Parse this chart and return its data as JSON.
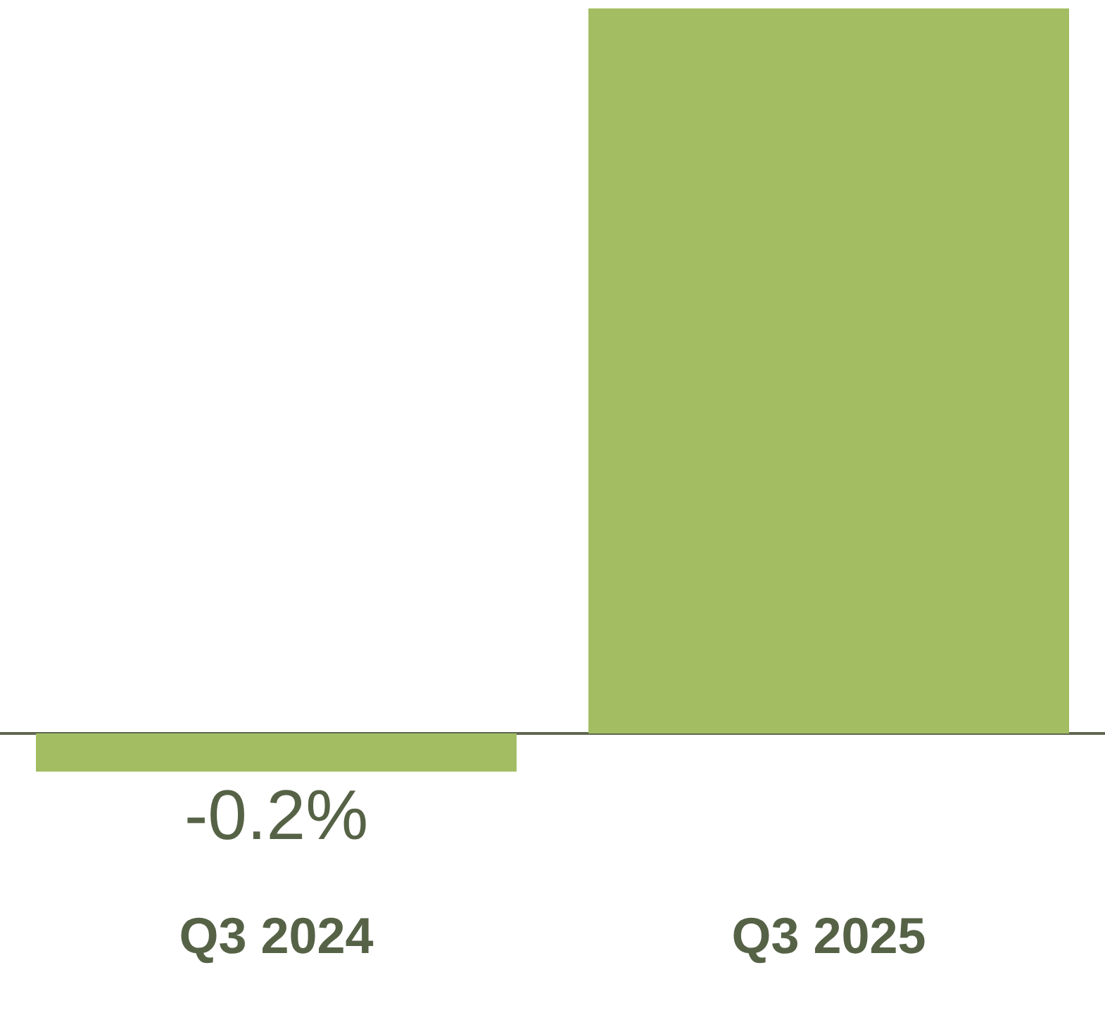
{
  "chart_data": {
    "type": "bar",
    "categories": [
      "Q3 2024",
      "Q3 2025"
    ],
    "values": [
      -0.2,
      3.8
    ],
    "value_labels": [
      "-0.2%",
      null
    ],
    "color": "#a3bd62"
  }
}
